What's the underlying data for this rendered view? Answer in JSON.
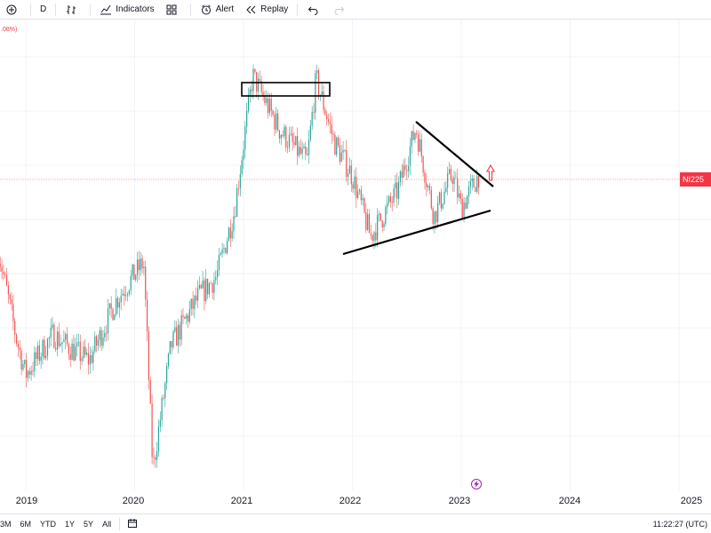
{
  "toolbar": {
    "interval_label": "D",
    "indicators_label": "Indicators",
    "alert_label": "Alert",
    "replay_label": "Replay",
    "icons": [
      "add-icon",
      "bar-style-icon",
      "indicators-icon",
      "templates-icon",
      "alert-icon",
      "replay-icon",
      "undo-icon",
      "redo-icon"
    ]
  },
  "change_partial": ".08%)",
  "price_tag_label": "NI225",
  "x_axis_labels": [
    "2019",
    "2020",
    "2021",
    "2022",
    "2023",
    "2024",
    "2025"
  ],
  "bottom_bar": {
    "ranges": [
      "3M",
      "6M",
      "YTD",
      "1Y",
      "5Y",
      "All"
    ],
    "clock": "11:22:27 (UTC)"
  },
  "colors": {
    "up": "#26a69a",
    "down": "#ef5350",
    "price_tag": "#f23645",
    "grid": "#f0f3fa",
    "drawing": "#000000"
  },
  "chart_data": {
    "type": "candlestick",
    "title": "",
    "series_name": "NI225",
    "x_ticks": [
      "2019",
      "2020",
      "2021",
      "2022",
      "2023",
      "2024",
      "2025"
    ],
    "x_range": [
      "2018-10",
      "2025-06"
    ],
    "key_points": [
      {
        "date": "2018-10",
        "value": 0.78
      },
      {
        "date": "2018-12",
        "value": 0.47
      },
      {
        "date": "2019-01",
        "value": 0.35
      },
      {
        "date": "2019-04",
        "value": 0.49
      },
      {
        "date": "2019-06",
        "value": 0.44
      },
      {
        "date": "2019-08",
        "value": 0.4
      },
      {
        "date": "2019-11",
        "value": 0.61
      },
      {
        "date": "2020-01",
        "value": 0.7
      },
      {
        "date": "2020-02",
        "value": 0.74
      },
      {
        "date": "2020-03",
        "value": 0.02
      },
      {
        "date": "2020-05",
        "value": 0.45
      },
      {
        "date": "2020-08",
        "value": 0.62
      },
      {
        "date": "2020-10",
        "value": 0.69
      },
      {
        "date": "2020-12",
        "value": 0.92
      },
      {
        "date": "2021-02",
        "value": 1.39
      },
      {
        "date": "2021-05",
        "value": 1.2
      },
      {
        "date": "2021-08",
        "value": 1.09
      },
      {
        "date": "2021-09",
        "value": 1.38
      },
      {
        "date": "2021-11",
        "value": 1.16
      },
      {
        "date": "2022-01",
        "value": 1.04
      },
      {
        "date": "2022-03",
        "value": 0.83
      },
      {
        "date": "2022-06",
        "value": 0.99
      },
      {
        "date": "2022-08",
        "value": 1.21
      },
      {
        "date": "2022-10",
        "value": 0.9
      },
      {
        "date": "2022-12",
        "value": 1.05
      },
      {
        "date": "2023-01",
        "value": 0.93
      },
      {
        "date": "2023-03",
        "value": 1.05
      }
    ],
    "grid": true,
    "annotations": [
      {
        "type": "rectangle",
        "from": "2021-01",
        "to": "2021-10",
        "level": "top-range"
      },
      {
        "type": "trendline",
        "role": "descending-resistance",
        "from": "2022-07",
        "to": "2023-04"
      },
      {
        "type": "trendline",
        "role": "ascending-support",
        "from": "2021-12",
        "to": "2023-04"
      },
      {
        "type": "arrow",
        "direction": "up",
        "at": "2023-04"
      }
    ]
  }
}
